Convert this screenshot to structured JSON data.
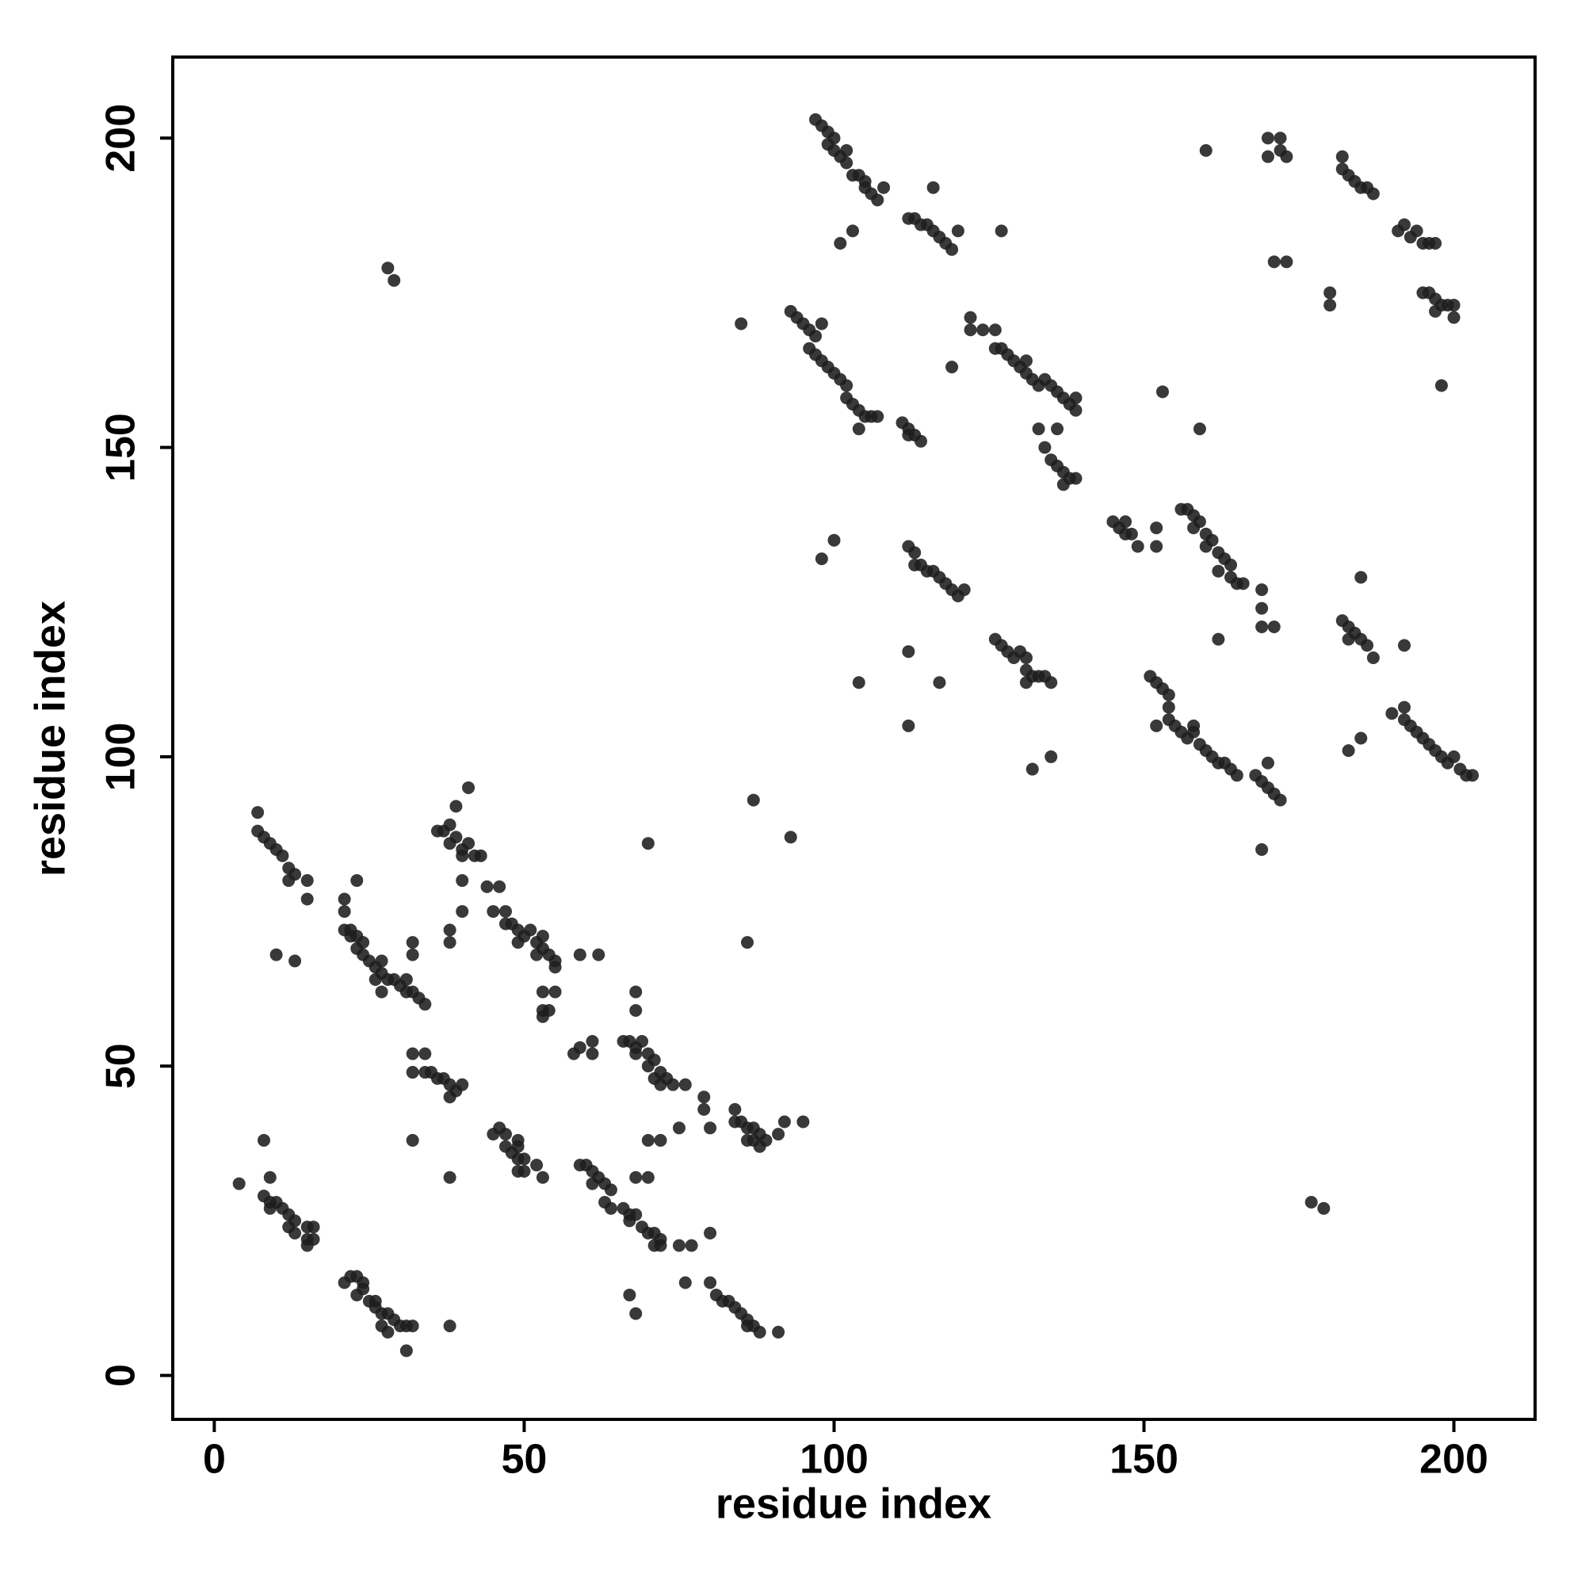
{
  "chart_data": {
    "type": "scatter",
    "xlabel": "residue index",
    "ylabel": "residue index",
    "xlim": [
      -6.7,
      213.1
    ],
    "ylim": [
      -7.1,
      213.1
    ],
    "xticks": [
      0,
      50,
      100,
      150,
      200
    ],
    "yticks": [
      0,
      50,
      100,
      150,
      200
    ],
    "series": [
      {
        "color": "#1e1e1e",
        "alpha": 0.88,
        "x": [
          7,
          7,
          8,
          9,
          10,
          11,
          12,
          13,
          12,
          15,
          15,
          10,
          13,
          21,
          21,
          21,
          22,
          23,
          23,
          24,
          25,
          26,
          27,
          27,
          28,
          29,
          30,
          31,
          32,
          33,
          34,
          22,
          24,
          26,
          27,
          31,
          23,
          32,
          32,
          38,
          38,
          32,
          34,
          32,
          34,
          35,
          36,
          37,
          38,
          39,
          40,
          38,
          32,
          38,
          36,
          37,
          38,
          39,
          38,
          40,
          41,
          40,
          42,
          43,
          39,
          41,
          40,
          40,
          44,
          46,
          45,
          47,
          47,
          48,
          49,
          50,
          51,
          52,
          53,
          53,
          54,
          55,
          55,
          49,
          52,
          53,
          55,
          53,
          54,
          53,
          45,
          46,
          47,
          47,
          48,
          49,
          49,
          50,
          49,
          52,
          53,
          50,
          49,
          58,
          59,
          61,
          61,
          66,
          67,
          68,
          69,
          68,
          70,
          71,
          70,
          72,
          71,
          73,
          72,
          74,
          76,
          68,
          68,
          59,
          62,
          70,
          59,
          60,
          61,
          62,
          61,
          63,
          64,
          63,
          64,
          66,
          67,
          68,
          67,
          69,
          70,
          71,
          72,
          71,
          72,
          75,
          77,
          68,
          70,
          70,
          72,
          75,
          80,
          79,
          79,
          84,
          84,
          85,
          86,
          87,
          86,
          88,
          88,
          89,
          87,
          91,
          92,
          95,
          93,
          87,
          86,
          85,
          4,
          9,
          8,
          9,
          10,
          11,
          9,
          12,
          13,
          12,
          13,
          15,
          16,
          15,
          16,
          15,
          8,
          21,
          22,
          23,
          24,
          23,
          24,
          25,
          26,
          26,
          27,
          28,
          27,
          29,
          28,
          30,
          31,
          32,
          31,
          38,
          76,
          80,
          81,
          82,
          83,
          84,
          85,
          86,
          86,
          87,
          88,
          91,
          67,
          68,
          80,
          28,
          29,
          97,
          98,
          99,
          99,
          100,
          100,
          101,
          102,
          102,
          103,
          104,
          105,
          105,
          106,
          107,
          108,
          101,
          103,
          112,
          113,
          114,
          115,
          116,
          117,
          118,
          119,
          116,
          120,
          127,
          93,
          94,
          95,
          96,
          97,
          98,
          96,
          97,
          98,
          99,
          100,
          101,
          102,
          102,
          103,
          104,
          105,
          104,
          106,
          107,
          111,
          112,
          113,
          114,
          112,
          122,
          122,
          124,
          126,
          126,
          127,
          128,
          129,
          130,
          131,
          131,
          132,
          133,
          134,
          135,
          136,
          137,
          138,
          139,
          139,
          119,
          133,
          134,
          136,
          135,
          136,
          137,
          138,
          137,
          139,
          145,
          146,
          147,
          147,
          148,
          149,
          152,
          152,
          153,
          159,
          156,
          157,
          158,
          158,
          159,
          160,
          160,
          161,
          162,
          163,
          162,
          164,
          164,
          165,
          166,
          162,
          169,
          169,
          169,
          171,
          112,
          113,
          113,
          114,
          115,
          116,
          117,
          118,
          119,
          120,
          121,
          98,
          100,
          112,
          117,
          104,
          112,
          126,
          127,
          128,
          129,
          130,
          131,
          131,
          132,
          133,
          134,
          131,
          135,
          132,
          135,
          151,
          152,
          153,
          154,
          152,
          154,
          155,
          156,
          157,
          158,
          159,
          160,
          161,
          162,
          163,
          164,
          165,
          154,
          158,
          168,
          169,
          170,
          171,
          172,
          170,
          169,
          182,
          183,
          183,
          184,
          185,
          186,
          187,
          185,
          192,
          183,
          185,
          190,
          192,
          192,
          193,
          194,
          195,
          196,
          197,
          198,
          199,
          200,
          201,
          202,
          203,
          170,
          170,
          172,
          172,
          173,
          171,
          173,
          160,
          182,
          182,
          183,
          184,
          185,
          186,
          187,
          191,
          192,
          193,
          194,
          195,
          196,
          197,
          195,
          196,
          197,
          198,
          199,
          200,
          197,
          200,
          180,
          180,
          198,
          177,
          179
        ],
        "y": [
          91,
          88,
          87,
          86,
          85,
          84,
          82,
          81,
          80,
          80,
          77,
          68,
          67,
          77,
          75,
          72,
          71,
          71,
          69,
          68,
          67,
          66,
          67,
          65,
          64,
          64,
          63,
          62,
          62,
          61,
          60,
          72,
          70,
          64,
          62,
          64,
          80,
          70,
          68,
          72,
          70,
          52,
          52,
          49,
          49,
          49,
          48,
          48,
          47,
          46,
          47,
          45,
          38,
          32,
          88,
          88,
          89,
          87,
          86,
          85,
          86,
          84,
          84,
          84,
          92,
          95,
          80,
          75,
          79,
          79,
          75,
          75,
          73,
          73,
          72,
          71,
          72,
          70,
          71,
          69,
          68,
          67,
          66,
          70,
          68,
          62,
          62,
          59,
          59,
          58,
          39,
          40,
          39,
          37,
          36,
          37,
          35,
          35,
          33,
          34,
          32,
          33,
          38,
          52,
          53,
          54,
          52,
          54,
          54,
          53,
          54,
          52,
          52,
          51,
          50,
          49,
          48,
          48,
          47,
          47,
          47,
          62,
          59,
          68,
          68,
          86,
          34,
          34,
          33,
          32,
          31,
          31,
          30,
          28,
          27,
          27,
          26,
          26,
          25,
          24,
          23,
          23,
          22,
          21,
          21,
          21,
          21,
          32,
          32,
          38,
          38,
          40,
          40,
          43,
          45,
          43,
          41,
          41,
          40,
          40,
          38,
          39,
          37,
          38,
          38,
          39,
          41,
          41,
          87,
          93,
          70,
          170,
          31,
          32,
          29,
          28,
          28,
          27,
          27,
          26,
          25,
          24,
          23,
          24,
          24,
          22,
          22,
          21,
          38,
          15,
          16,
          16,
          15,
          13,
          14,
          12,
          12,
          11,
          10,
          10,
          8,
          9,
          7,
          8,
          8,
          8,
          4,
          8,
          15,
          15,
          13,
          12,
          12,
          11,
          10,
          9,
          8,
          8,
          7,
          7,
          13,
          10,
          23,
          179,
          177,
          203,
          202,
          201,
          199,
          200,
          198,
          197,
          198,
          196,
          194,
          194,
          193,
          192,
          191,
          190,
          192,
          183,
          185,
          187,
          187,
          186,
          186,
          185,
          184,
          183,
          182,
          192,
          185,
          185,
          172,
          171,
          170,
          169,
          168,
          170,
          166,
          165,
          164,
          163,
          162,
          161,
          160,
          158,
          157,
          156,
          155,
          153,
          155,
          155,
          154,
          153,
          152,
          151,
          152,
          171,
          169,
          169,
          169,
          166,
          166,
          165,
          164,
          163,
          164,
          162,
          161,
          160,
          161,
          160,
          159,
          158,
          157,
          158,
          156,
          163,
          153,
          150,
          153,
          148,
          147,
          146,
          145,
          144,
          145,
          138,
          137,
          138,
          136,
          136,
          134,
          137,
          134,
          159,
          153,
          140,
          140,
          139,
          137,
          138,
          136,
          134,
          135,
          133,
          132,
          130,
          131,
          129,
          128,
          128,
          119,
          127,
          124,
          121,
          121,
          134,
          133,
          131,
          131,
          130,
          130,
          129,
          128,
          127,
          126,
          127,
          132,
          135,
          117,
          112,
          112,
          105,
          119,
          118,
          117,
          116,
          117,
          116,
          114,
          113,
          113,
          113,
          112,
          112,
          98,
          100,
          113,
          112,
          111,
          110,
          105,
          106,
          105,
          104,
          103,
          104,
          102,
          101,
          100,
          99,
          99,
          98,
          97,
          108,
          105,
          97,
          96,
          95,
          94,
          93,
          99,
          85,
          122,
          121,
          119,
          120,
          119,
          118,
          116,
          129,
          118,
          101,
          103,
          107,
          108,
          106,
          105,
          104,
          103,
          102,
          101,
          100,
          99,
          100,
          98,
          97,
          97,
          200,
          197,
          200,
          198,
          197,
          180,
          180,
          198,
          197,
          195,
          194,
          193,
          192,
          192,
          191,
          185,
          186,
          184,
          185,
          183,
          183,
          183,
          175,
          175,
          174,
          173,
          173,
          173,
          172,
          171,
          175,
          173,
          160,
          28,
          27
        ]
      }
    ]
  }
}
